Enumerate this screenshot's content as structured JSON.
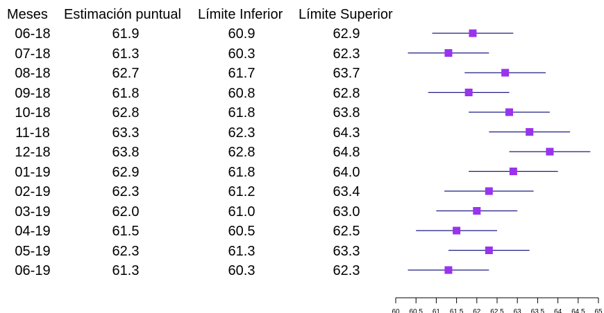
{
  "table": {
    "headers": [
      "Meses",
      "Estimación puntual",
      "Límite Inferior",
      "Límite Superior"
    ],
    "rows": [
      [
        "06-18",
        "61.9",
        "60.9",
        "62.9"
      ],
      [
        "07-18",
        "61.3",
        "60.3",
        "62.3"
      ],
      [
        "08-18",
        "62.7",
        "61.7",
        "63.7"
      ],
      [
        "09-18",
        "61.8",
        "60.8",
        "62.8"
      ],
      [
        "10-18",
        "62.8",
        "61.8",
        "63.8"
      ],
      [
        "11-18",
        "63.3",
        "62.3",
        "64.3"
      ],
      [
        "12-18",
        "63.8",
        "62.8",
        "64.8"
      ],
      [
        "01-19",
        "62.9",
        "61.8",
        "64.0"
      ],
      [
        "02-19",
        "62.3",
        "61.2",
        "63.4"
      ],
      [
        "03-19",
        "62.0",
        "61.0",
        "63.0"
      ],
      [
        "04-19",
        "61.5",
        "60.5",
        "62.5"
      ],
      [
        "05-19",
        "62.3",
        "61.3",
        "63.3"
      ],
      [
        "06-19",
        "61.3",
        "60.3",
        "62.3"
      ]
    ]
  },
  "chart_data": {
    "type": "forest",
    "categories": [
      "06-18",
      "07-18",
      "08-18",
      "09-18",
      "10-18",
      "11-18",
      "12-18",
      "01-19",
      "02-19",
      "03-19",
      "04-19",
      "05-19",
      "06-19"
    ],
    "estimate": [
      61.9,
      61.3,
      62.7,
      61.8,
      62.8,
      63.3,
      63.8,
      62.9,
      62.3,
      62.0,
      61.5,
      62.3,
      61.3
    ],
    "lower": [
      60.9,
      60.3,
      61.7,
      60.8,
      61.8,
      62.3,
      62.8,
      61.8,
      61.2,
      61.0,
      60.5,
      61.3,
      60.3
    ],
    "upper": [
      62.9,
      62.3,
      63.7,
      62.8,
      63.8,
      64.3,
      64.8,
      64.0,
      63.4,
      63.0,
      62.5,
      63.3,
      62.3
    ],
    "xlim": [
      60,
      65
    ],
    "xticks": [
      60,
      60.5,
      61,
      61.5,
      62,
      62.5,
      63,
      63.5,
      64,
      64.5,
      65
    ],
    "xtick_labels": [
      "60",
      "60.5",
      "61",
      "61.5",
      "62",
      "62.5",
      "63",
      "63.5",
      "64",
      "64.5",
      "65"
    ],
    "marker_color": "#9933ee",
    "line_color": "#1a1a80",
    "axis_color": "#000000"
  }
}
